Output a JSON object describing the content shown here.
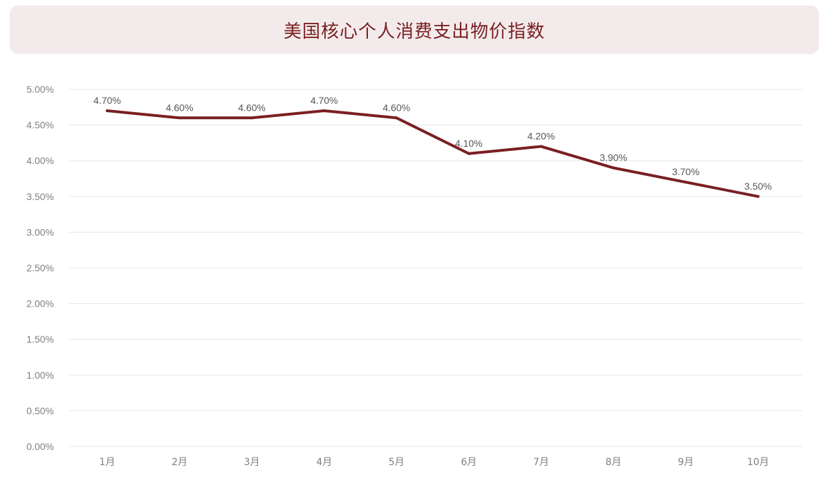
{
  "chart_data": {
    "type": "line",
    "title": "美国核心个人消费支出物价指数",
    "categories": [
      "1月",
      "2月",
      "3月",
      "4月",
      "5月",
      "6月",
      "7月",
      "8月",
      "9月",
      "10月"
    ],
    "series": [
      {
        "values": [
          4.7,
          4.6,
          4.6,
          4.7,
          4.6,
          4.1,
          4.2,
          3.9,
          3.7,
          3.5
        ],
        "color": "#7a1f22"
      }
    ],
    "data_labels": [
      "4.70%",
      "4.60%",
      "4.60%",
      "4.70%",
      "4.60%",
      "4.10%",
      "4.20%",
      "3.90%",
      "3.70%",
      "3.50%"
    ],
    "yticks": [
      "0.00%",
      "0.50%",
      "1.00%",
      "1.50%",
      "2.00%",
      "2.50%",
      "3.00%",
      "3.50%",
      "4.00%",
      "4.50%",
      "5.00%"
    ],
    "ylim": [
      0,
      5
    ],
    "grid": true,
    "legend": "none"
  }
}
